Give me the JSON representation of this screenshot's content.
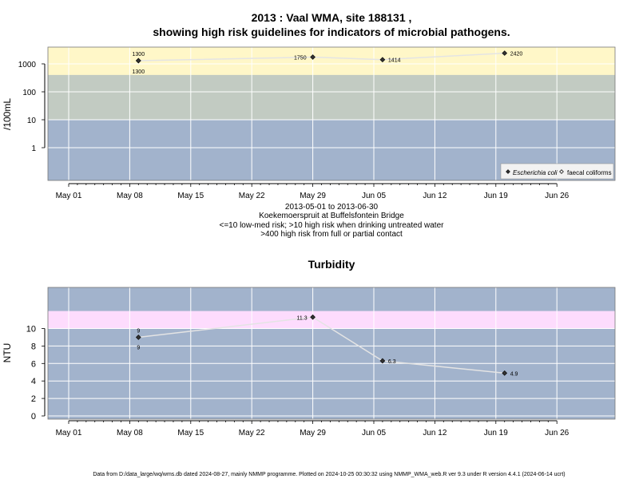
{
  "chart_data": [
    {
      "type": "line",
      "title": "2013 : Vaal WMA, site 188131 ,",
      "subtitle": "showing high risk guidelines for indicators of microbial pathogens.",
      "ylabel": "/100mL",
      "y_scale": "log",
      "yticks": [
        1,
        10,
        100,
        1000
      ],
      "ytick_labels": [
        "1",
        "10",
        "100",
        "1000"
      ],
      "xticks": [
        "2013-05-01",
        "2013-05-08",
        "2013-05-15",
        "2013-05-22",
        "2013-05-29",
        "2013-06-05",
        "2013-06-12",
        "2013-06-19",
        "2013-06-26"
      ],
      "xtick_labels": [
        "May 01",
        "May 08",
        "May 15",
        "May 22",
        "May 29",
        "Jun 05",
        "Jun 12",
        "Jun 19",
        "Jun 26"
      ],
      "bands": [
        {
          "from": 10,
          "to": 400,
          "color": "#c2cbc2"
        },
        {
          "from": 400,
          "to": 4000,
          "color": "#fff7c8"
        }
      ],
      "background_color": "#a2b3cc",
      "legend_placement": "bottom-right",
      "series": [
        {
          "name": "Escherichia coli",
          "marker": "filled-diamond",
          "x": [
            "2013-05-09"
          ],
          "y": [
            1300
          ],
          "labels": [
            "1300"
          ]
        },
        {
          "name": "faecal coliforms",
          "marker": "open-diamond",
          "x": [
            "2013-05-09",
            "2013-05-29",
            "2013-06-06",
            "2013-06-20"
          ],
          "y": [
            1300,
            1750,
            1414,
            2420
          ],
          "labels": [
            "1300",
            "1750",
            "1414",
            "2420"
          ]
        }
      ],
      "notes": [
        "2013-05-01 to 2013-06-30",
        "Koekemoerspruit at Buffelsfontein Bridge",
        "<=10 low-med risk; >10 high risk when drinking untreated water",
        ">400 high risk from full or partial contact"
      ]
    },
    {
      "type": "line",
      "title": "Turbidity",
      "ylabel": "NTU",
      "yticks": [
        0,
        2,
        4,
        6,
        8,
        10
      ],
      "ytick_labels": [
        "0",
        "2",
        "4",
        "6",
        "8",
        "10"
      ],
      "xticks": [
        "2013-05-01",
        "2013-05-08",
        "2013-05-15",
        "2013-05-22",
        "2013-05-29",
        "2013-06-05",
        "2013-06-12",
        "2013-06-19",
        "2013-06-26"
      ],
      "xtick_labels": [
        "May 01",
        "May 08",
        "May 15",
        "May 22",
        "May 29",
        "Jun 05",
        "Jun 12",
        "Jun 19",
        "Jun 26"
      ],
      "bands": [
        {
          "from": 10,
          "to": 12,
          "color": "#fddcfd"
        }
      ],
      "background_color": "#a2b3cc",
      "series": [
        {
          "marker": "filled-diamond",
          "x": [
            "2013-05-09",
            "2013-05-29",
            "2013-06-06",
            "2013-06-20"
          ],
          "y": [
            9,
            11.3,
            6.3,
            4.9
          ],
          "labels": [
            "9",
            "11.3",
            "6.3",
            "4.9"
          ]
        }
      ],
      "extra_point_labels": [
        {
          "x": "2013-05-09",
          "label": "9"
        }
      ]
    }
  ],
  "footer": "Data from D:/data_large/wq/wms.db dated 2024-08-27, mainly NMMP programme. Plotted on 2024-10-25 00:30:32 using NMMP_WMA_web.R ver 9.3 under R version 4.4.1 (2024-06-14 ucrt)"
}
